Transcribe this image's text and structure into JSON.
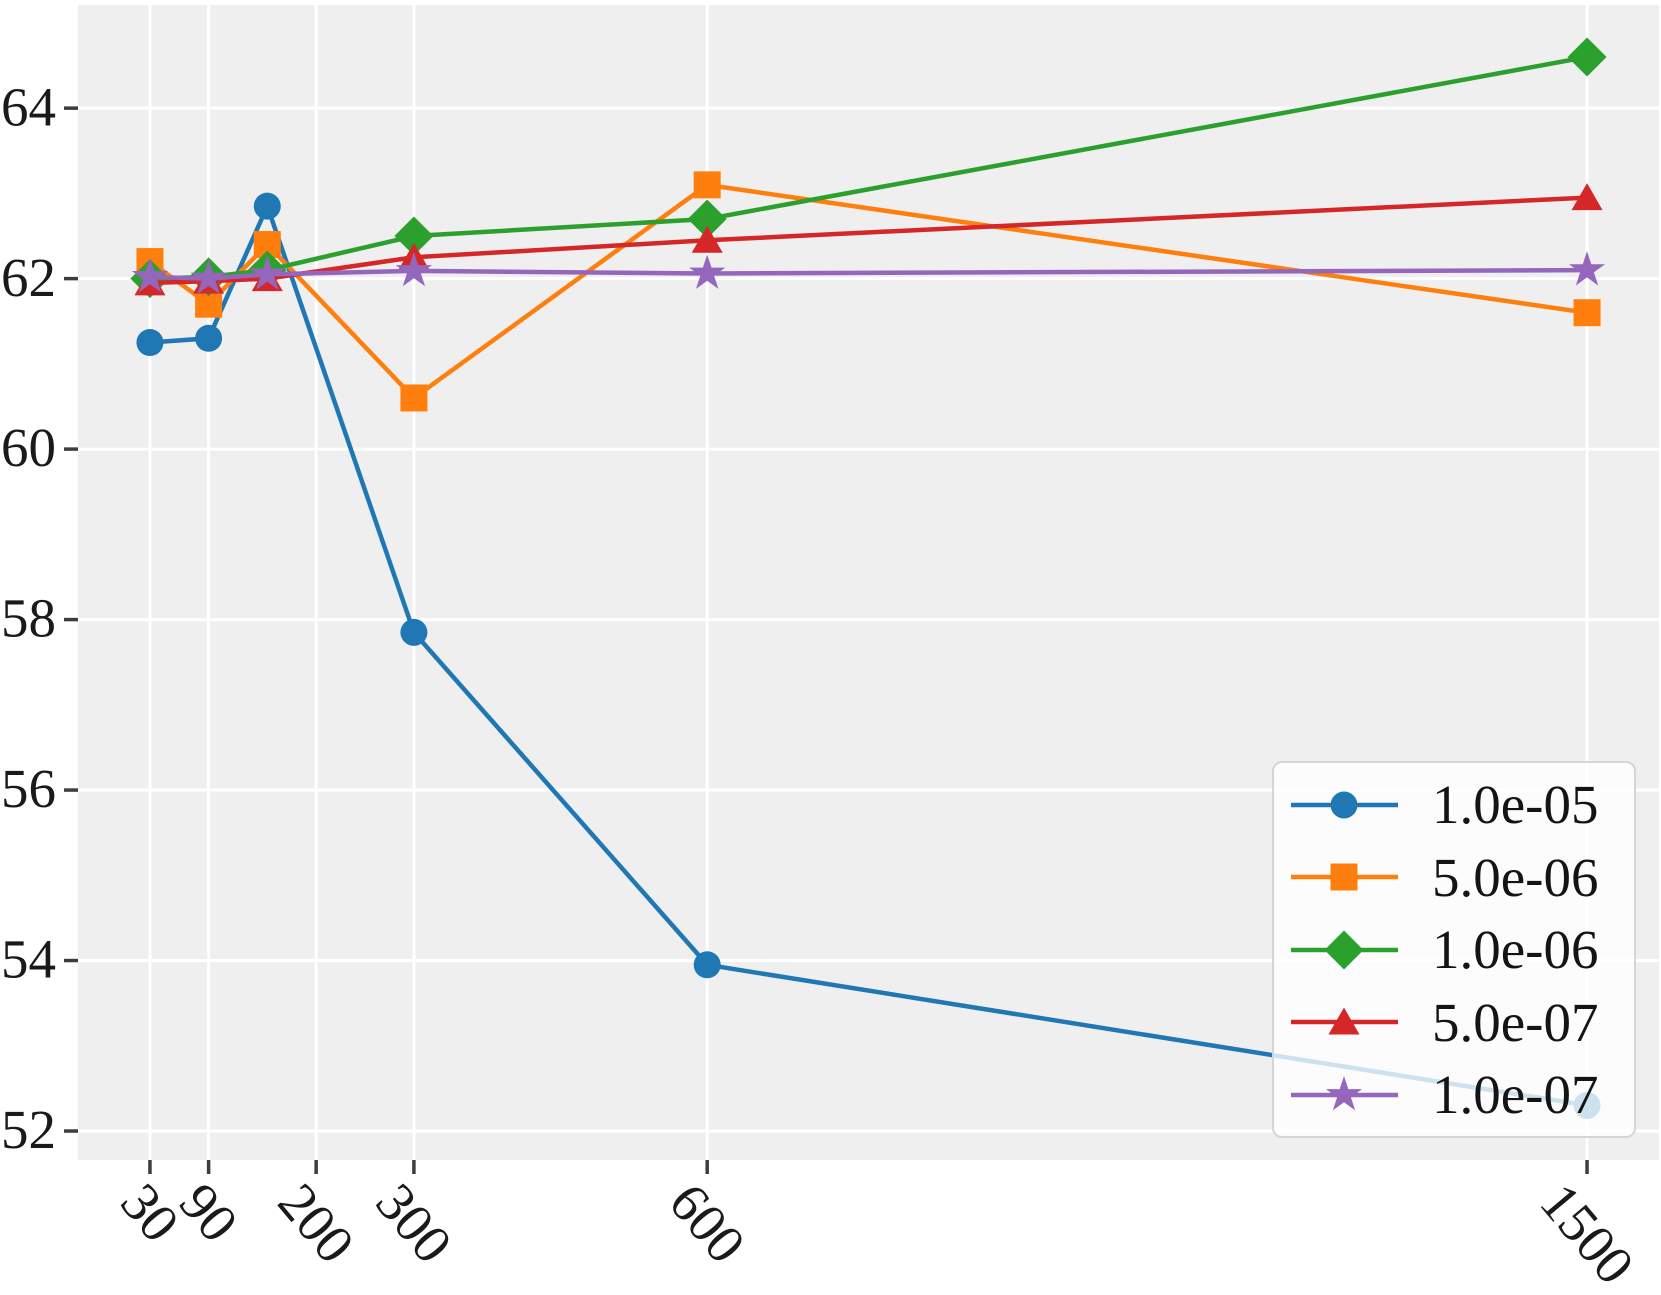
{
  "chart_data": {
    "type": "line",
    "title": "",
    "xlabel": "",
    "ylabel": "",
    "grid": true,
    "plot_background_color": "#efefef",
    "grid_color": "#ffffff",
    "tick_mark_color": "#3d3d3d",
    "tick_label_color": "#1a1a1a",
    "x": [
      30,
      90,
      150,
      300,
      600,
      1500
    ],
    "series": [
      {
        "name": "1.0e-05",
        "color": "#1f77b4",
        "marker": "circle",
        "values": [
          61.25,
          61.3,
          62.85,
          57.85,
          53.95,
          52.3
        ]
      },
      {
        "name": "5.0e-06",
        "color": "#ff7f0e",
        "marker": "square",
        "values": [
          62.2,
          61.7,
          62.4,
          60.6,
          63.1,
          61.6
        ]
      },
      {
        "name": "1.0e-06",
        "color": "#2ca02c",
        "marker": "diamond",
        "values": [
          62.0,
          62.02,
          62.1,
          62.5,
          62.7,
          64.6
        ]
      },
      {
        "name": "5.0e-07",
        "color": "#d62728",
        "marker": "triangle-up",
        "values": [
          61.95,
          61.97,
          62.0,
          62.25,
          62.45,
          62.95
        ]
      },
      {
        "name": "1.0e-07",
        "color": "#9467bd",
        "marker": "star",
        "values": [
          62.02,
          62.0,
          62.05,
          62.09,
          62.06,
          62.1
        ]
      }
    ],
    "xticks": {
      "values": [
        30,
        90,
        200,
        300,
        600,
        1500
      ],
      "labels": [
        "30",
        "90",
        "200",
        "300",
        "600",
        "1500"
      ],
      "rotation_deg": 50
    },
    "yticks": {
      "values": [
        52,
        54,
        56,
        58,
        60,
        62,
        64
      ],
      "labels": [
        "52",
        "54",
        "56",
        "58",
        "60",
        "62",
        "64"
      ]
    },
    "xlim": [
      -43.6,
      1573.6
    ],
    "ylim": [
      51.66,
      65.21
    ],
    "legend_position": "lower right"
  }
}
